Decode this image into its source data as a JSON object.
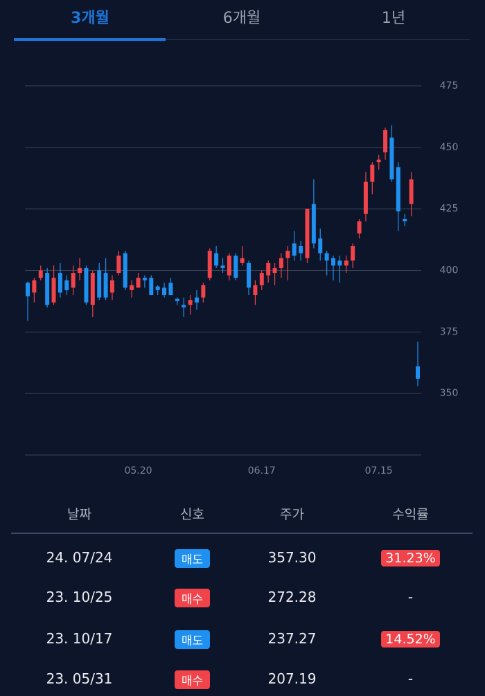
{
  "tabs": [
    "3개월",
    "6개월",
    "1년"
  ],
  "chart_data": {
    "type": "candlestick",
    "categories": [
      null,
      null,
      null,
      null,
      null,
      null,
      null,
      null,
      null,
      null,
      null,
      null,
      null,
      null,
      null,
      null,
      null,
      "05.20",
      null,
      null,
      null,
      null,
      null,
      null,
      null,
      null,
      null,
      null,
      null,
      null,
      null,
      null,
      null,
      null,
      null,
      null,
      "06.17",
      null,
      null,
      null,
      null,
      null,
      null,
      null,
      null,
      null,
      null,
      null,
      null,
      null,
      null,
      null,
      null,
      null,
      "07.15",
      null,
      null,
      null,
      null,
      null,
      null
    ],
    "open": [
      395,
      391,
      397,
      399,
      387,
      399,
      396,
      393,
      399,
      401,
      386,
      400,
      399,
      391,
      399,
      407,
      392,
      393,
      397,
      397,
      393.5,
      393,
      395,
      388.5,
      386,
      386,
      389,
      389,
      397,
      407,
      402,
      398,
      406,
      403,
      403,
      390,
      394,
      398,
      399,
      401,
      405,
      411,
      410,
      405,
      427,
      413,
      407,
      405,
      404,
      402,
      404,
      415,
      423,
      436,
      444,
      448,
      454,
      442,
      421,
      427,
      361
    ],
    "high": [
      395.5,
      397,
      402,
      401,
      402,
      403,
      398,
      402,
      405,
      402,
      400,
      403,
      405,
      398,
      408,
      408,
      396,
      399,
      398,
      398,
      394,
      395,
      397,
      389,
      389,
      390,
      392,
      395,
      409,
      410,
      405,
      407,
      407,
      410,
      404,
      396,
      400,
      404,
      403,
      407,
      410,
      416,
      412,
      425,
      437,
      417,
      408,
      406,
      406,
      406,
      411,
      421,
      440,
      444,
      447,
      458,
      459,
      444,
      423,
      440,
      371
    ],
    "low": [
      379.5,
      387,
      396,
      385,
      386,
      389,
      390,
      390,
      396,
      386,
      381,
      388,
      388,
      388,
      398,
      392,
      389,
      393,
      393,
      390,
      390,
      389,
      390,
      386,
      381,
      382,
      384,
      387,
      396,
      401,
      399,
      396,
      396,
      402,
      390,
      386,
      392,
      395,
      394,
      397,
      396,
      404,
      404,
      403,
      409,
      404,
      398,
      396,
      395,
      399,
      401,
      413,
      420,
      431,
      441,
      445,
      436,
      416,
      418,
      422,
      353
    ],
    "close": [
      389.5,
      396,
      400,
      386,
      397,
      391,
      392,
      399,
      401,
      387,
      399,
      389,
      389,
      396,
      406,
      393,
      394,
      397,
      396,
      390,
      392,
      390,
      390,
      387.5,
      385,
      388,
      387,
      394,
      408,
      402,
      401,
      406,
      397,
      405,
      393,
      394,
      399,
      403,
      401,
      405,
      408,
      406,
      407,
      425,
      411,
      407,
      404,
      402,
      402,
      404,
      410,
      420,
      436,
      443,
      445,
      457,
      437,
      424,
      420,
      437,
      356
    ],
    "up_color": "#f0434a",
    "down_color": "#1f8ff0",
    "ylim": [
      325,
      487
    ],
    "yticks": [
      350,
      375,
      400,
      425,
      450,
      475
    ],
    "grid": true
  },
  "table": {
    "header": [
      "날짜",
      "신호",
      "주가",
      "수익률"
    ],
    "rows": [
      [
        "24. 07/24",
        "매도",
        "357.30",
        "31.23%"
      ],
      [
        "23. 10/25",
        "매수",
        "272.28",
        "-"
      ],
      [
        "23. 10/17",
        "매도",
        "237.27",
        "14.52%"
      ],
      [
        "23. 05/31",
        "매수",
        "207.19",
        "-"
      ]
    ]
  }
}
